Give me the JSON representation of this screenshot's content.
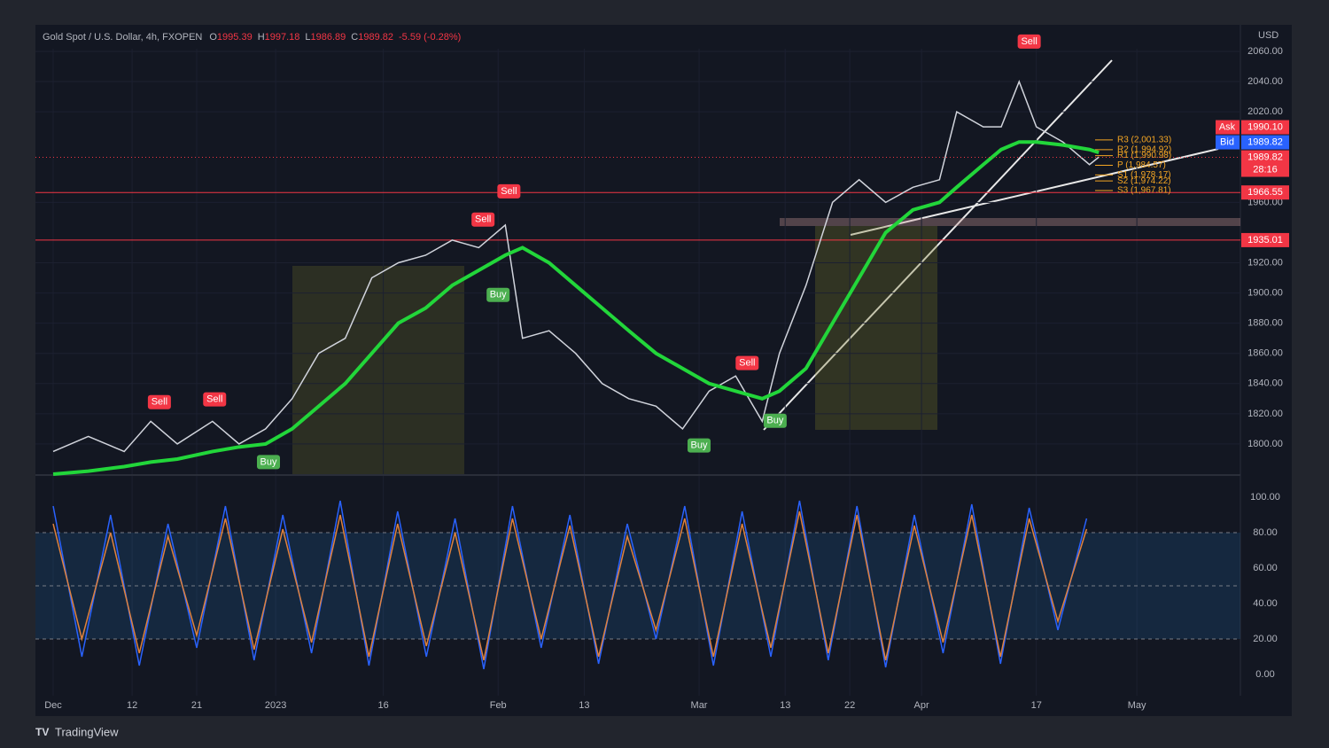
{
  "chart_data": [
    {
      "type": "line",
      "title": "Gold Spot / U.S. Dollar, 4h, FXOPEN",
      "ohlc": [
        {
          "label": "O",
          "value": 1995.39
        },
        {
          "label": "H",
          "value": 1997.18
        },
        {
          "label": "L",
          "value": 1986.89
        },
        {
          "label": "C",
          "value": 1989.82
        }
      ],
      "change_label": "-5.59 (-0.28%)",
      "currency": "USD",
      "x": [
        0,
        4.9,
        9.9,
        13.6,
        17.3,
        22.2,
        25.9,
        29.6,
        33.3,
        37,
        40.7,
        44.4,
        48.1,
        51.9,
        55.6,
        59.3,
        63,
        65.4,
        69.1,
        72.8,
        76.5,
        80.2,
        84,
        87.7,
        91.4,
        95.1,
        98.8,
        101.2,
        104.9,
        108.6,
        112.3,
        116,
        119.8,
        123.5,
        125.9,
        129.6,
        132.1,
        134.6,
        137,
        140.7,
        144.4,
        145.7
      ],
      "series": [
        {
          "color": "#d1d4dc",
          "values": [
            1795,
            1805,
            1795,
            1815,
            1800,
            1815,
            1800,
            1810,
            1830,
            1860,
            1870,
            1910,
            1920,
            1925,
            1935,
            1930,
            1945,
            1870,
            1875,
            1860,
            1840,
            1830,
            1825,
            1810,
            1835,
            1845,
            1815,
            1860,
            1905,
            1960,
            1975,
            1960,
            1970,
            1975,
            2020,
            2010,
            2010,
            2040,
            2010,
            2000,
            1985,
            1990
          ]
        },
        {
          "color": "#22d63a",
          "values": [
            1780,
            1782,
            1785,
            1788,
            1790,
            1795,
            1798,
            1800,
            1810,
            1825,
            1840,
            1860,
            1880,
            1890,
            1905,
            1915,
            1925,
            1930,
            1920,
            1905,
            1890,
            1875,
            1860,
            1850,
            1840,
            1835,
            1830,
            1835,
            1850,
            1880,
            1910,
            1940,
            1955,
            1960,
            1970,
            1985,
            1995,
            2000,
            2000,
            1998,
            1995,
            1993
          ]
        }
      ],
      "xlim": [
        -2.47,
        165.43
      ],
      "xticks": [
        {
          "value": 0,
          "label": "Dec"
        },
        {
          "value": 11,
          "label": "12"
        },
        {
          "value": 20,
          "label": "21"
        },
        {
          "value": 31,
          "label": "2023"
        },
        {
          "value": 46,
          "label": "16"
        },
        {
          "value": 62,
          "label": "Feb"
        },
        {
          "value": 74,
          "label": "13"
        },
        {
          "value": 90,
          "label": "Mar"
        },
        {
          "value": 102,
          "label": "13"
        },
        {
          "value": 111,
          "label": "22"
        },
        {
          "value": 121,
          "label": "Apr"
        },
        {
          "value": 137,
          "label": "17"
        },
        {
          "value": 151,
          "label": "May"
        }
      ],
      "ylim": [
        1780,
        2077.6
      ],
      "yticks": [
        {
          "value": 2060,
          "label": "2060.00"
        },
        {
          "value": 2040,
          "label": "2040.00"
        },
        {
          "value": 2020,
          "label": "2020.00"
        },
        {
          "value": 1960,
          "label": "1960.00"
        },
        {
          "value": 1920,
          "label": "1920.00"
        },
        {
          "value": 1900,
          "label": "1900.00"
        },
        {
          "value": 1880,
          "label": "1880.00"
        },
        {
          "value": 1860,
          "label": "1860.00"
        },
        {
          "value": 1840,
          "label": "1840.00"
        },
        {
          "value": 1820,
          "label": "1820.00"
        },
        {
          "value": 1800,
          "label": "1800.00"
        }
      ],
      "grid": true,
      "hlines": [
        1966.55,
        1935.01
      ],
      "hline_color": "#f23645",
      "ask": {
        "name": "Ask",
        "value": 1990.1,
        "label": "1990.10"
      },
      "bid": {
        "name": "Bid",
        "value": 1989.82
      },
      "last": {
        "value": 1989.82,
        "countdown": "28:16"
      },
      "pivots": [
        {
          "label": "R3 (2,001.33)",
          "value": 2001.33
        },
        {
          "label": "R2 (1,994.92)",
          "value": 1994.92
        },
        {
          "label": "R1 (1,990.98)",
          "value": 1990.98
        },
        {
          "label": "P (1,984.57)",
          "value": 1984.57
        },
        {
          "label": "S1 (1,978.17)",
          "value": 1978.17
        },
        {
          "label": "S2 (1,974.22)",
          "value": 1974.22
        },
        {
          "label": "S3 (1,967.81)",
          "value": 1967.81
        }
      ],
      "signals": [
        {
          "label": "Sell",
          "x": 14.8,
          "y": 1827.7
        },
        {
          "label": "Sell",
          "x": 22.5,
          "y": 1829.5
        },
        {
          "label": "Sell",
          "x": 59.9,
          "y": 1948.6
        },
        {
          "label": "Sell",
          "x": 63.5,
          "y": 1967.3
        },
        {
          "label": "Sell",
          "x": 96.7,
          "y": 1853.6
        },
        {
          "label": "Sell",
          "x": 136,
          "y": 2066.5
        },
        {
          "label": "Buy",
          "x": 30,
          "y": 1788
        },
        {
          "label": "Buy",
          "x": 62,
          "y": 1898.7
        },
        {
          "label": "Buy",
          "x": 90,
          "y": 1799
        },
        {
          "label": "Buy",
          "x": 100.6,
          "y": 1815.4
        }
      ]
    },
    {
      "type": "line",
      "x": [
        0,
        4,
        8,
        12,
        16,
        20,
        24,
        28,
        32,
        36,
        40,
        44,
        48,
        52,
        56,
        60,
        64,
        68,
        72,
        76,
        80,
        84,
        88,
        92,
        96,
        100,
        104,
        108,
        112,
        116,
        120,
        124,
        128,
        132,
        136,
        140,
        144
      ],
      "series": [
        {
          "color": "#2962ff",
          "values": [
            95,
            10,
            90,
            5,
            85,
            15,
            95,
            8,
            90,
            12,
            98,
            5,
            92,
            10,
            88,
            3,
            95,
            15,
            90,
            6,
            85,
            20,
            95,
            5,
            92,
            10,
            98,
            8,
            95,
            4,
            90,
            12,
            96,
            6,
            94,
            25,
            88
          ]
        },
        {
          "color": "#e0823d",
          "values": [
            85,
            20,
            80,
            12,
            78,
            22,
            88,
            14,
            82,
            18,
            90,
            10,
            85,
            16,
            80,
            8,
            88,
            20,
            84,
            10,
            78,
            25,
            88,
            10,
            85,
            15,
            92,
            12,
            90,
            8,
            84,
            18,
            90,
            10,
            88,
            30,
            82
          ]
        }
      ],
      "ylim": [
        -12,
        112
      ],
      "yticks": [
        {
          "value": 100,
          "label": "100.00"
        },
        {
          "value": 80,
          "label": "80.00"
        },
        {
          "value": 60,
          "label": "60.00"
        },
        {
          "value": 40,
          "label": "40.00"
        },
        {
          "value": 20,
          "label": "20.00"
        },
        {
          "value": 0,
          "label": "0.00"
        }
      ],
      "band": [
        20,
        80
      ],
      "levels": [
        80,
        50,
        20
      ]
    }
  ],
  "branding": "TradingView"
}
